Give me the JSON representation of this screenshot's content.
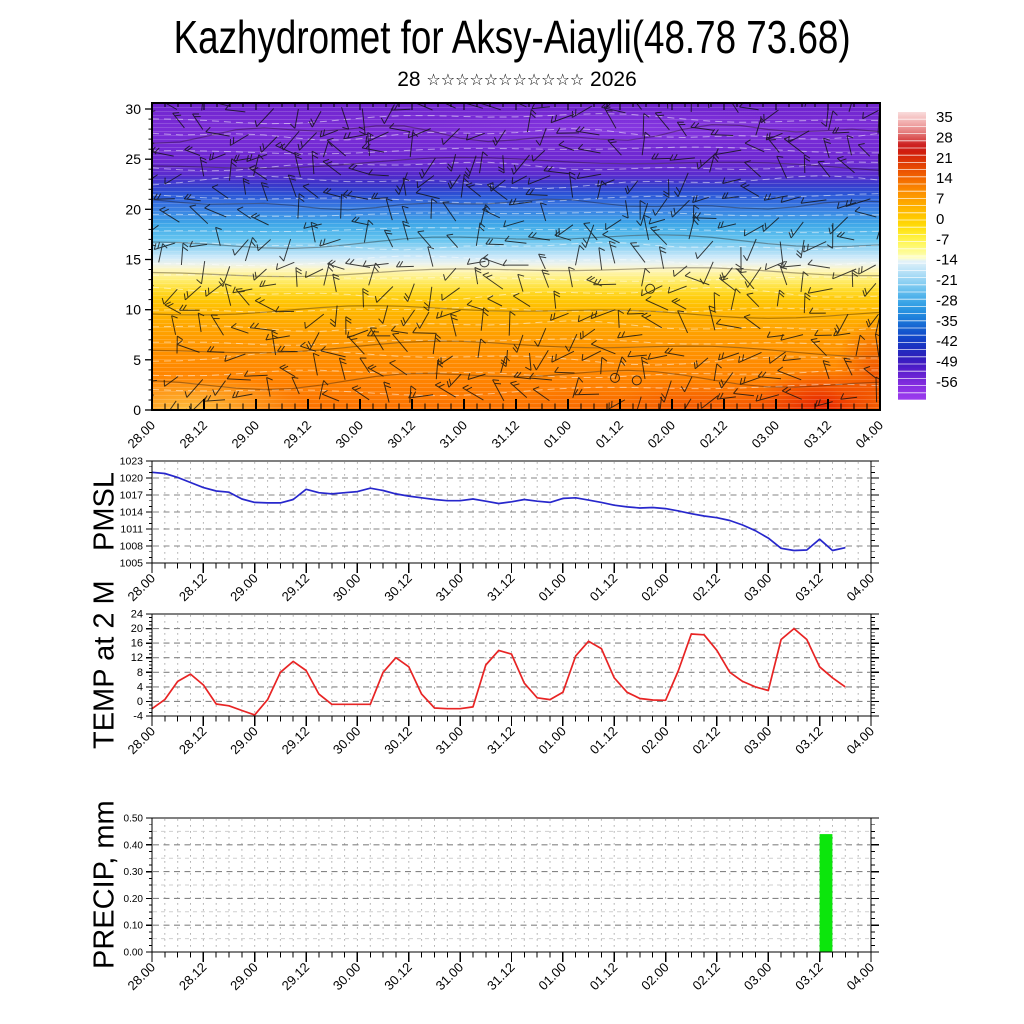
{
  "title": "Kazhydromet for Aksy-Aiayli(48.78 73.68)",
  "subtitle": {
    "day": "28",
    "stars": "☆☆☆☆☆☆☆☆☆☆☆",
    "year": "2026"
  },
  "colors": {
    "pmsl_line": "#2727cc",
    "temp_line": "#e82424",
    "precip_bar": "#0ce60c",
    "grid_major": "#858585",
    "grid_minor": "#b3b3b3",
    "axis": "#000000"
  },
  "time_axis": {
    "major_labels": [
      "28.00",
      "28.12",
      "29.00",
      "29.12",
      "30.00",
      "30.12",
      "31.00",
      "31.12",
      "01.00",
      "01.12",
      "02.00",
      "02.12",
      "03.00",
      "03.12",
      "04.00"
    ],
    "range_hours": [
      0,
      168
    ],
    "major_step_hours": 12,
    "minor_step_hours": 3
  },
  "chart_data": [
    {
      "id": "cross_section",
      "type": "heatmap",
      "description": "Temperature shading (deg C) with wind barbs, height (0-30) vs time",
      "yticks": [
        0,
        5,
        10,
        15,
        20,
        25,
        30
      ],
      "ylim": [
        0,
        30.6
      ],
      "band_stops": [
        {
          "v": 30.6,
          "c": "#6f24ce"
        },
        {
          "v": 28,
          "c": "#7b2dd7"
        },
        {
          "v": 25,
          "c": "#6e28d2"
        },
        {
          "v": 23.5,
          "c": "#5b2bce"
        },
        {
          "v": 22.5,
          "c": "#3a3acc"
        },
        {
          "v": 21.5,
          "c": "#2b55d6"
        },
        {
          "v": 20,
          "c": "#3a80e2"
        },
        {
          "v": 18.5,
          "c": "#3fa8e8"
        },
        {
          "v": 17,
          "c": "#65c4ef"
        },
        {
          "v": 16,
          "c": "#9ed8f4"
        },
        {
          "v": 15.2,
          "c": "#cfeafa"
        },
        {
          "v": 14.5,
          "c": "#eef3ea"
        },
        {
          "v": 14,
          "c": "#fdf6c0"
        },
        {
          "v": 13,
          "c": "#ffee72"
        },
        {
          "v": 12,
          "c": "#ffdd30"
        },
        {
          "v": 11,
          "c": "#ffc908"
        },
        {
          "v": 10,
          "c": "#ffb900"
        },
        {
          "v": 8.5,
          "c": "#ffa800"
        },
        {
          "v": 7,
          "c": "#ff9a00"
        },
        {
          "v": 5,
          "c": "#ff8d00"
        },
        {
          "v": 3,
          "c": "#ff8300"
        },
        {
          "v": 0,
          "c": "#fb7200"
        }
      ],
      "colorbar": {
        "tick_labels": [
          "35",
          "28",
          "21",
          "14",
          "7",
          "0",
          "-7",
          "-14",
          "-21",
          "-28",
          "-35",
          "-42",
          "-49",
          "-56"
        ],
        "vmax": 36.7,
        "vmin": -62.3,
        "stops": [
          {
            "v": 36.7,
            "c": "#f9dcdc"
          },
          {
            "v": 33,
            "c": "#f1adad"
          },
          {
            "v": 30,
            "c": "#e68282"
          },
          {
            "v": 27.5,
            "c": "#d94f4f"
          },
          {
            "v": 25.5,
            "c": "#cd2222"
          },
          {
            "v": 23,
            "c": "#cf1d0e"
          },
          {
            "v": 20,
            "c": "#dc3407"
          },
          {
            "v": 17,
            "c": "#e94f03"
          },
          {
            "v": 14,
            "c": "#f36600"
          },
          {
            "v": 11.5,
            "c": "#f87d00"
          },
          {
            "v": 9,
            "c": "#fc9000"
          },
          {
            "v": 6,
            "c": "#fea500"
          },
          {
            "v": 3,
            "c": "#ffb900"
          },
          {
            "v": 0,
            "c": "#ffcc00"
          },
          {
            "v": -3,
            "c": "#ffdf0c"
          },
          {
            "v": -6,
            "c": "#ffef3a"
          },
          {
            "v": -9,
            "c": "#fff868"
          },
          {
            "v": -12,
            "c": "#fdfca0"
          },
          {
            "v": -13.5,
            "c": "#ffffc8"
          },
          {
            "v": -14.5,
            "c": "#e4f2f8"
          },
          {
            "v": -17,
            "c": "#c6e7f8"
          },
          {
            "v": -20,
            "c": "#a3d9f5"
          },
          {
            "v": -23,
            "c": "#7ecaf0"
          },
          {
            "v": -26,
            "c": "#58b7ec"
          },
          {
            "v": -29,
            "c": "#38a3e6"
          },
          {
            "v": -32,
            "c": "#2690e0"
          },
          {
            "v": -35,
            "c": "#1b77d8"
          },
          {
            "v": -38,
            "c": "#145ccf"
          },
          {
            "v": -41,
            "c": "#1144c8"
          },
          {
            "v": -44,
            "c": "#1b31c1"
          },
          {
            "v": -47,
            "c": "#2b22bc"
          },
          {
            "v": -50,
            "c": "#4419c4"
          },
          {
            "v": -53,
            "c": "#6020cf"
          },
          {
            "v": -56,
            "c": "#7c2adb"
          },
          {
            "v": -59,
            "c": "#8f33e6"
          },
          {
            "v": -62.3,
            "c": "#9c3cee"
          }
        ]
      }
    },
    {
      "id": "pmsl",
      "type": "line",
      "ylabel": "PMSL",
      "color": "#2727cc",
      "yticks": [
        1005,
        1008,
        1011,
        1014,
        1017,
        1020,
        1023
      ],
      "minor_step": 1,
      "ylim": [
        1005,
        1023
      ],
      "start_hours": 0,
      "step_hours": 3,
      "values": [
        1021,
        1020.8,
        1020.1,
        1019.2,
        1018.3,
        1017.7,
        1017.5,
        1016.3,
        1015.7,
        1015.6,
        1015.6,
        1016.2,
        1018.0,
        1017.4,
        1017.2,
        1017.4,
        1017.6,
        1018.2,
        1017.8,
        1017.2,
        1016.8,
        1016.5,
        1016.2,
        1016.0,
        1016.0,
        1016.3,
        1015.9,
        1015.5,
        1015.8,
        1016.2,
        1015.9,
        1015.7,
        1016.4,
        1016.5,
        1016.1,
        1015.7,
        1015.2,
        1014.9,
        1014.7,
        1014.8,
        1014.6,
        1014.2,
        1013.7,
        1013.3,
        1013.0,
        1012.5,
        1011.7,
        1010.7,
        1009.4,
        1007.6,
        1007.2,
        1007.3,
        1009.2,
        1007.2,
        1007.7
      ]
    },
    {
      "id": "temp_2m",
      "type": "line",
      "ylabel": "TEMP at 2 M",
      "color": "#e82424",
      "yticks": [
        -4,
        0,
        4,
        8,
        12,
        16,
        20,
        24
      ],
      "minor_step": 1,
      "ylim": [
        -4,
        24
      ],
      "start_hours": 0,
      "step_hours": 3,
      "values": [
        -2,
        0.5,
        5.5,
        7.5,
        4.5,
        -0.7,
        -1.2,
        -2.5,
        -3.7,
        0.5,
        8,
        11,
        8.5,
        2,
        -0.8,
        -0.8,
        -0.8,
        -0.8,
        8,
        12,
        9.5,
        2,
        -1.8,
        -2,
        -2,
        -1.5,
        10,
        14,
        13,
        5,
        1,
        0.5,
        2.5,
        12.5,
        16.5,
        14.5,
        6.5,
        2.5,
        0.8,
        0.4,
        0.3,
        8.5,
        18.5,
        18.3,
        14,
        8,
        5.5,
        4,
        3,
        17,
        20,
        17,
        9.5,
        6.5,
        4
      ]
    },
    {
      "id": "precip",
      "type": "bar",
      "ylabel": "PRECIP, mm",
      "color": "#0ce60c",
      "yticks": [
        "0.00",
        "0.10",
        "0.20",
        "0.30",
        "0.40",
        "0.50"
      ],
      "minor_step": 0.025,
      "ylim": [
        0,
        0.5
      ],
      "bars": [
        {
          "start_hours": 156,
          "end_hours": 159,
          "value": 0.44
        }
      ]
    }
  ]
}
